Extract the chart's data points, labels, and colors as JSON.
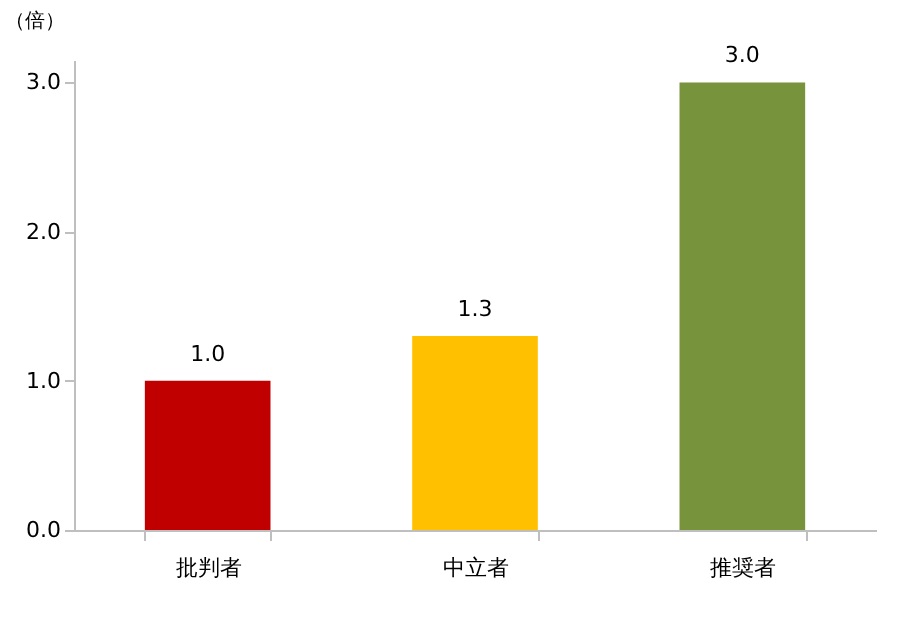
{
  "chart_data": {
    "type": "bar",
    "ylabel": "（倍）",
    "categories": [
      "批判者",
      "中立者",
      "推奨者"
    ],
    "values": [
      1.0,
      1.3,
      3.0
    ],
    "colors": [
      "#c00000",
      "#ffc000",
      "#77933c"
    ],
    "ylim": [
      0,
      3.15
    ],
    "yticks": [
      {
        "value": 0,
        "label": "0.0"
      },
      {
        "value": 1,
        "label": "1.0"
      },
      {
        "value": 2,
        "label": "2.0"
      },
      {
        "value": 3,
        "label": "3.0"
      }
    ],
    "value_labels": [
      "1.0",
      "1.3",
      "3.0"
    ],
    "grid": false
  }
}
